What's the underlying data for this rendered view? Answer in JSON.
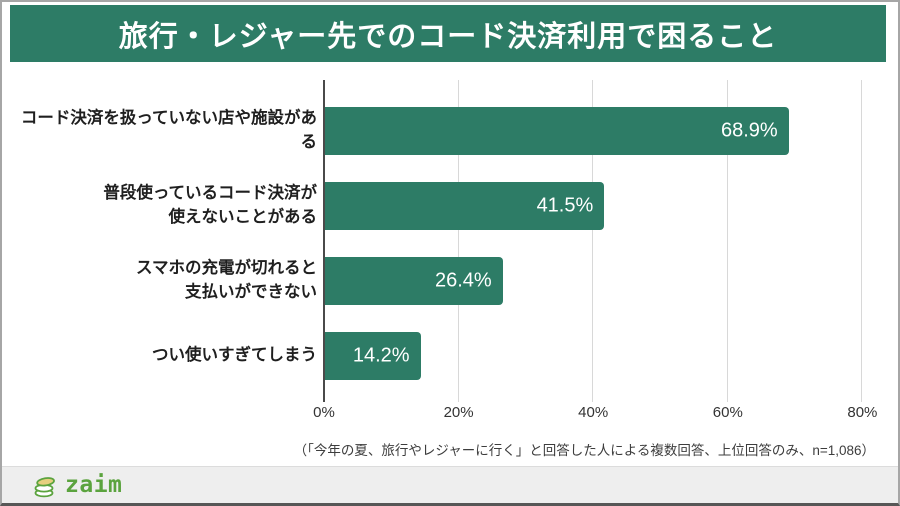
{
  "title": "旅行・レジャー先でのコード決済利用で困ること",
  "chart_data": {
    "type": "bar",
    "orientation": "horizontal",
    "title": "旅行・レジャー先でのコード決済利用で困ること",
    "categories": [
      "コード決済を扱っていない店や施設がある",
      "普段使っているコード決済が\n使えないことがある",
      "スマホの充電が切れると\n支払いができない",
      "つい使いすぎてしまう"
    ],
    "values": [
      68.9,
      41.5,
      26.4,
      14.2
    ],
    "value_labels": [
      "68.9%",
      "41.5%",
      "26.4%",
      "14.2%"
    ],
    "x_ticks": [
      {
        "label": "0%",
        "value": 0
      },
      {
        "label": "20%",
        "value": 20
      },
      {
        "label": "40%",
        "value": 40
      },
      {
        "label": "60%",
        "value": 60
      },
      {
        "label": "80%",
        "value": 80
      }
    ],
    "xlim": [
      0,
      83
    ],
    "grid": "vertical",
    "legend": "none",
    "bar_color": "#2d7c66",
    "value_label_color": "#ffffff"
  },
  "footnote": "（「今年の夏、旅行やレジャーに行く」と回答した人による複数回答、上位回答のみ、n=1,086）",
  "footer": {
    "logo_text": "zaim"
  },
  "colors": {
    "header_bg": "#2d7c66",
    "header_text": "#ffffff",
    "bar": "#2d7c66",
    "gridline": "#d8d8d8",
    "axis": "#4a4a4a",
    "footer_bg": "#eeeeee",
    "logo_green": "#5ba33e",
    "coin_gold": "#e6cf7f"
  }
}
